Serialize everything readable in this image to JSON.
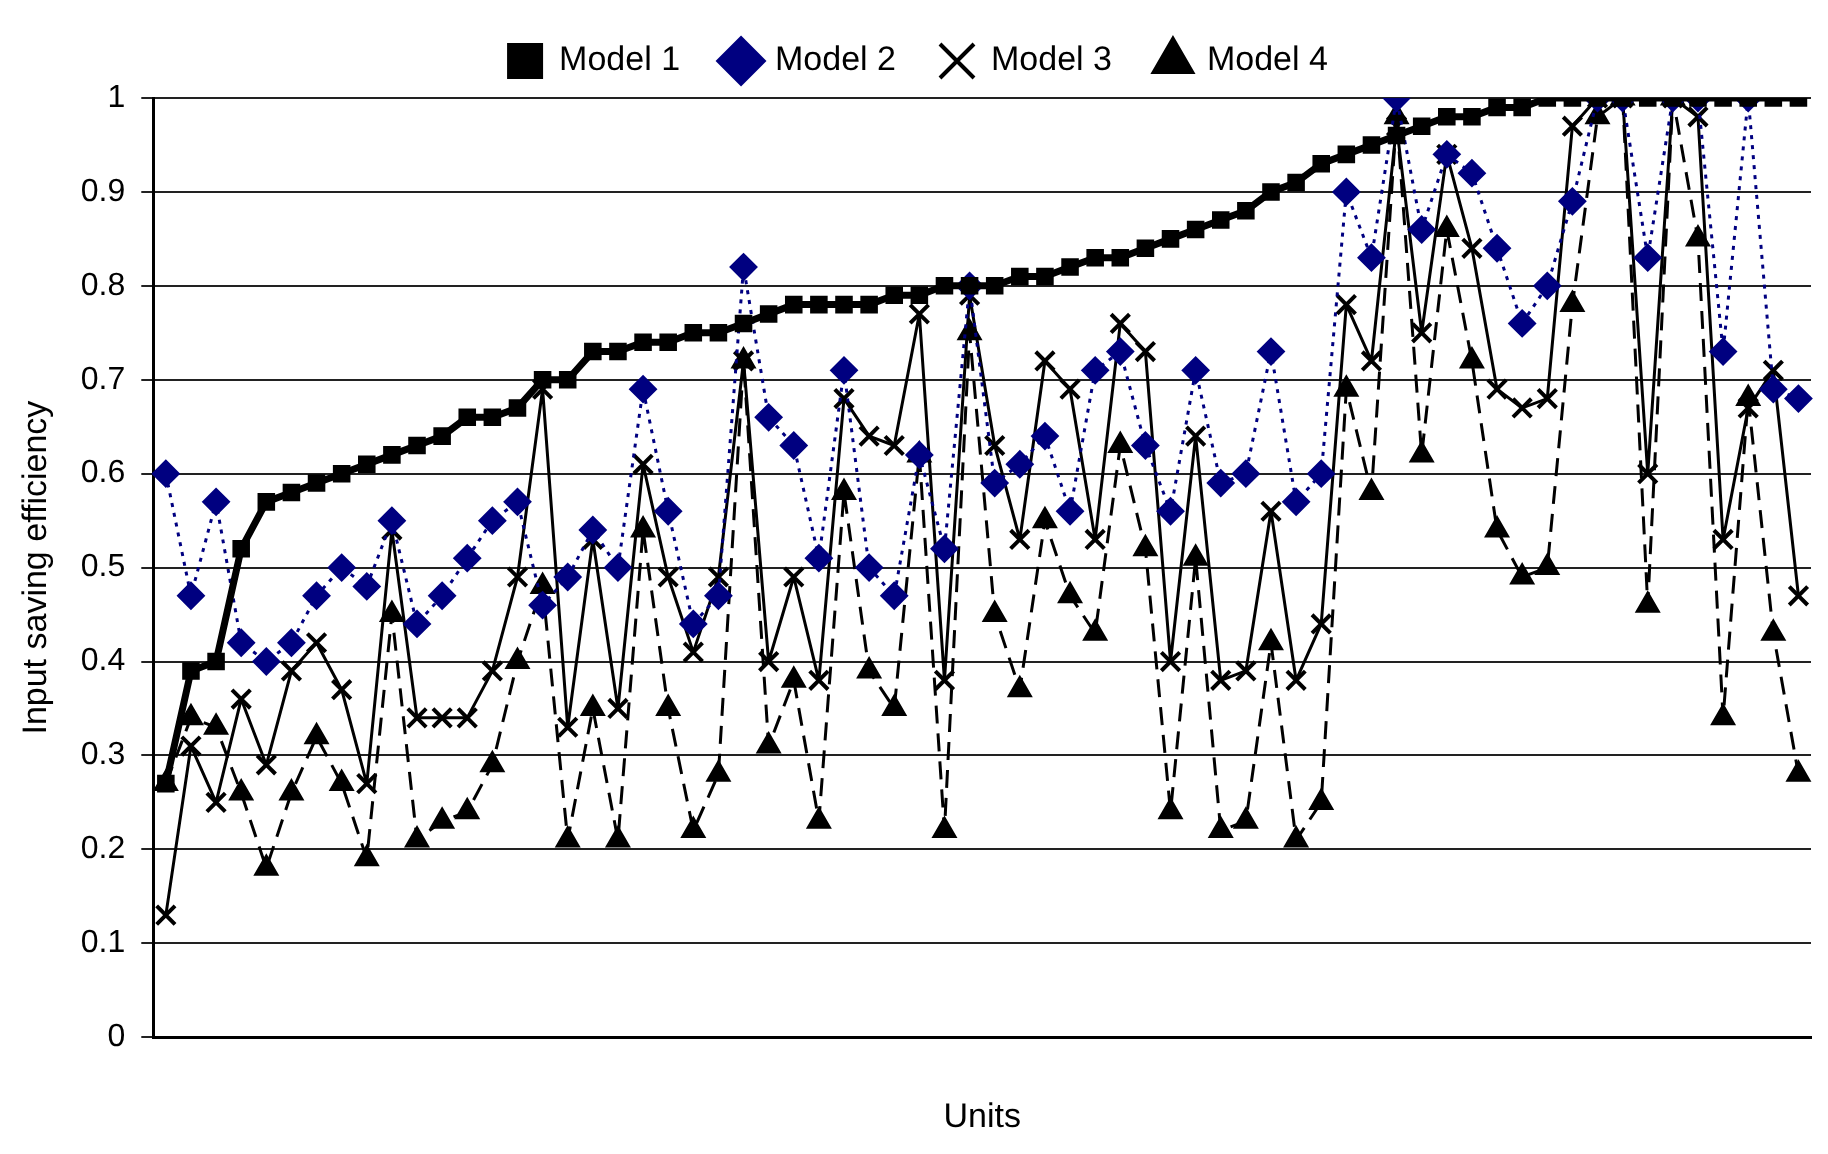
{
  "chart_data": {
    "type": "line",
    "xlabel": "Units",
    "ylabel": "Input saving efficiency",
    "categories": [
      null,
      null,
      null,
      null,
      null,
      null,
      null,
      null,
      null,
      null,
      null,
      null,
      null,
      null,
      null,
      null,
      null,
      null,
      null,
      null,
      null,
      null,
      null,
      null,
      null,
      null,
      null,
      null,
      null,
      null,
      null,
      null,
      null,
      null,
      null,
      null,
      null,
      null,
      null,
      null,
      null,
      null,
      null,
      null,
      null,
      null,
      null,
      null,
      null,
      null,
      null,
      null,
      null,
      null,
      null,
      null,
      null,
      null,
      null,
      null,
      null,
      null,
      null,
      null,
      null,
      null
    ],
    "ylim": [
      0,
      1
    ],
    "yticks": [
      0,
      0.1,
      0.2,
      0.3,
      0.4,
      0.5,
      0.6,
      0.7,
      0.8,
      0.9,
      1
    ],
    "grid": "y",
    "legend": "top",
    "tick_labels": "y",
    "series": [
      {
        "name": "Model 1",
        "color": "#000000",
        "marker": "square",
        "line_style": "solid",
        "values": [
          0.27,
          0.39,
          0.4,
          0.52,
          0.57,
          0.58,
          0.59,
          0.6,
          0.61,
          0.62,
          0.63,
          0.64,
          0.66,
          0.66,
          0.67,
          0.7,
          0.7,
          0.73,
          0.73,
          0.74,
          0.74,
          0.75,
          0.75,
          0.76,
          0.77,
          0.78,
          0.78,
          0.78,
          0.78,
          0.79,
          0.79,
          0.8,
          0.8,
          0.8,
          0.81,
          0.81,
          0.82,
          0.83,
          0.83,
          0.84,
          0.85,
          0.86,
          0.87,
          0.88,
          0.9,
          0.91,
          0.93,
          0.94,
          0.95,
          0.96,
          0.97,
          0.98,
          0.98,
          0.99,
          0.99,
          1,
          1,
          1,
          1,
          1,
          1,
          1,
          1,
          1,
          1,
          1
        ]
      },
      {
        "name": "Model 2",
        "color": "#000080",
        "marker": "diamond",
        "line_style": "dotted",
        "values": [
          0.6,
          0.47,
          0.57,
          0.42,
          0.4,
          0.42,
          0.47,
          0.5,
          0.48,
          0.55,
          0.44,
          0.47,
          0.51,
          0.55,
          0.57,
          0.46,
          0.49,
          0.54,
          0.5,
          0.69,
          0.56,
          0.44,
          0.47,
          0.82,
          0.66,
          0.63,
          0.51,
          0.71,
          0.5,
          0.47,
          0.62,
          0.52,
          0.8,
          0.59,
          0.61,
          0.64,
          0.56,
          0.71,
          0.73,
          0.63,
          0.56,
          0.71,
          0.59,
          0.6,
          0.73,
          0.57,
          0.6,
          0.9,
          0.83,
          1,
          0.86,
          0.94,
          0.92,
          0.84,
          0.76,
          0.8,
          0.89,
          1,
          1,
          0.83,
          1,
          1,
          0.73,
          1,
          0.69,
          0.68
        ]
      },
      {
        "name": "Model 3",
        "color": "#000000",
        "marker": "cross",
        "line_style": "solid",
        "values": [
          0.13,
          0.31,
          0.25,
          0.36,
          0.29,
          0.39,
          0.42,
          0.37,
          0.27,
          0.54,
          0.34,
          0.34,
          0.34,
          0.39,
          0.49,
          0.69,
          0.33,
          0.53,
          0.35,
          0.61,
          0.49,
          0.41,
          0.49,
          0.72,
          0.4,
          0.49,
          0.38,
          0.68,
          0.64,
          0.63,
          0.77,
          0.38,
          0.79,
          0.63,
          0.53,
          0.72,
          0.69,
          0.53,
          0.76,
          0.73,
          0.4,
          0.64,
          0.38,
          0.39,
          0.56,
          0.38,
          0.44,
          0.78,
          0.72,
          0.97,
          0.75,
          0.94,
          0.84,
          0.69,
          0.67,
          0.68,
          0.97,
          1,
          1,
          0.6,
          1,
          0.98,
          0.53,
          0.67,
          0.71,
          0.47
        ]
      },
      {
        "name": "Model 4",
        "color": "#000000",
        "marker": "triangle",
        "line_style": "dashed",
        "values": [
          0.27,
          0.34,
          0.33,
          0.26,
          0.18,
          0.26,
          0.32,
          0.27,
          0.19,
          0.45,
          0.21,
          0.23,
          0.24,
          0.29,
          0.4,
          0.48,
          0.21,
          0.35,
          0.21,
          0.54,
          0.35,
          0.22,
          0.28,
          0.72,
          0.31,
          0.38,
          0.23,
          0.58,
          0.39,
          0.35,
          0.62,
          0.22,
          0.75,
          0.45,
          0.37,
          0.55,
          0.47,
          0.43,
          0.63,
          0.52,
          0.24,
          0.51,
          0.22,
          0.23,
          0.42,
          0.21,
          0.25,
          0.69,
          0.58,
          0.98,
          0.62,
          0.86,
          0.72,
          0.54,
          0.49,
          0.5,
          0.78,
          0.98,
          1,
          0.46,
          1,
          0.85,
          0.34,
          0.68,
          0.43,
          0.28
        ]
      }
    ]
  }
}
